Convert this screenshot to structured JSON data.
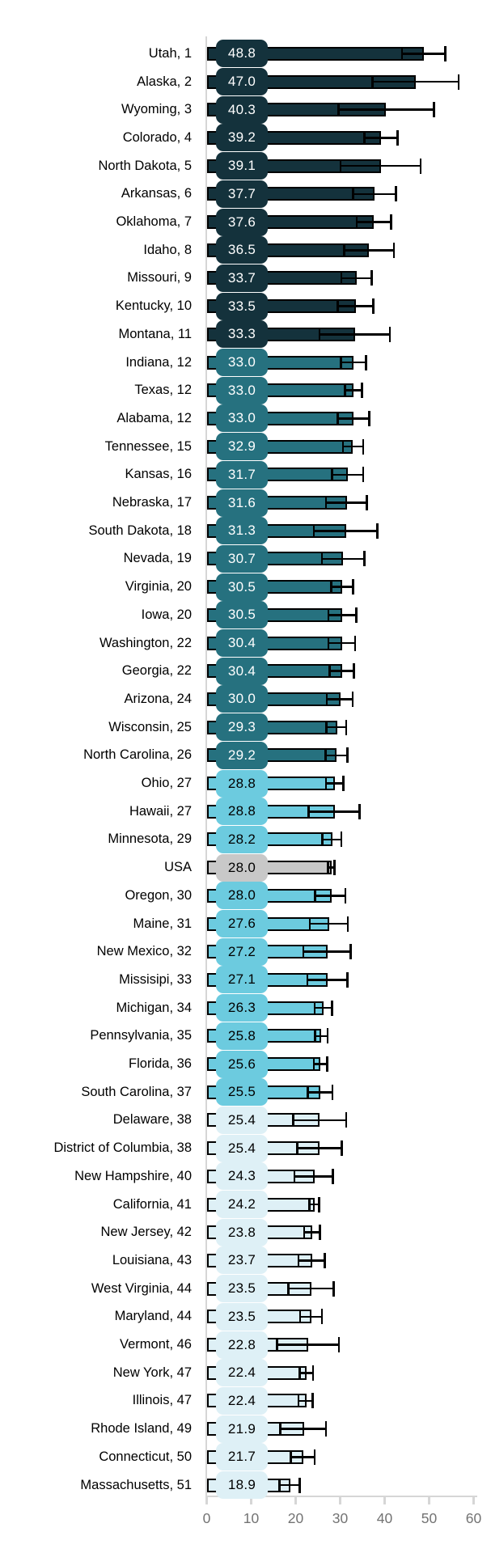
{
  "chart_data": {
    "type": "bar",
    "orientation": "horizontal",
    "title": "",
    "xlabel": "",
    "ylabel": "",
    "grid": false,
    "legend_position": "none",
    "value_axis": {
      "min": 0,
      "max": 60,
      "ticks": [
        "0",
        "10",
        "20",
        "30",
        "40",
        "50",
        "60"
      ]
    },
    "error_bars": true,
    "rows": [
      {
        "label": "Utah, 1",
        "value": 48.8,
        "display": "48.8",
        "ci": [
          43.9,
          53.6
        ],
        "tier": "q1"
      },
      {
        "label": "Alaska, 2",
        "value": 47.0,
        "display": "47.0",
        "ci": [
          37.3,
          56.6
        ],
        "tier": "q1"
      },
      {
        "label": "Wyoming, 3",
        "value": 40.3,
        "display": "40.3",
        "ci": [
          29.6,
          51.1
        ],
        "tier": "q1"
      },
      {
        "label": "Colorado, 4",
        "value": 39.2,
        "display": "39.2",
        "ci": [
          35.5,
          42.9
        ],
        "tier": "q1"
      },
      {
        "label": "North Dakota, 5",
        "value": 39.1,
        "display": "39.1",
        "ci": [
          30.1,
          48.1
        ],
        "tier": "q1"
      },
      {
        "label": "Arkansas, 6",
        "value": 37.7,
        "display": "37.7",
        "ci": [
          32.9,
          42.5
        ],
        "tier": "q1"
      },
      {
        "label": "Oklahoma, 7",
        "value": 37.6,
        "display": "37.6",
        "ci": [
          33.7,
          41.5
        ],
        "tier": "q1"
      },
      {
        "label": "Idaho, 8",
        "value": 36.5,
        "display": "36.5",
        "ci": [
          30.9,
          42.1
        ],
        "tier": "q1"
      },
      {
        "label": "Missouri, 9",
        "value": 33.7,
        "display": "33.7",
        "ci": [
          30.3,
          37.1
        ],
        "tier": "q1"
      },
      {
        "label": "Kentucky, 10",
        "value": 33.5,
        "display": "33.5",
        "ci": [
          29.5,
          37.5
        ],
        "tier": "q1"
      },
      {
        "label": "Montana, 11",
        "value": 33.3,
        "display": "33.3",
        "ci": [
          25.4,
          41.2
        ],
        "tier": "q1"
      },
      {
        "label": "Indiana, 12",
        "value": 33.0,
        "display": "33.0",
        "ci": [
          30.2,
          35.8
        ],
        "tier": "q2"
      },
      {
        "label": "Texas, 12",
        "value": 33.0,
        "display": "33.0",
        "ci": [
          31.1,
          34.9
        ],
        "tier": "q2"
      },
      {
        "label": "Alabama, 12",
        "value": 33.0,
        "display": "33.0",
        "ci": [
          29.5,
          36.5
        ],
        "tier": "q2"
      },
      {
        "label": "Tennessee, 15",
        "value": 32.9,
        "display": "32.9",
        "ci": [
          30.6,
          35.2
        ],
        "tier": "q2"
      },
      {
        "label": "Kansas, 16",
        "value": 31.7,
        "display": "31.7",
        "ci": [
          28.2,
          35.2
        ],
        "tier": "q2"
      },
      {
        "label": "Nebraska, 17",
        "value": 31.6,
        "display": "31.6",
        "ci": [
          26.8,
          36.0
        ],
        "tier": "q2"
      },
      {
        "label": "South Dakota, 18",
        "value": 31.3,
        "display": "31.3",
        "ci": [
          24.1,
          38.4
        ],
        "tier": "q2"
      },
      {
        "label": "Nevada, 19",
        "value": 30.7,
        "display": "30.7",
        "ci": [
          25.9,
          35.5
        ],
        "tier": "q2"
      },
      {
        "label": "Virginia, 20",
        "value": 30.5,
        "display": "30.5",
        "ci": [
          28.0,
          32.9
        ],
        "tier": "q2"
      },
      {
        "label": "Iowa, 20",
        "value": 30.5,
        "display": "30.5",
        "ci": [
          27.4,
          33.6
        ],
        "tier": "q2"
      },
      {
        "label": "Washington, 22",
        "value": 30.4,
        "display": "30.4",
        "ci": [
          27.4,
          33.4
        ],
        "tier": "q2"
      },
      {
        "label": "Georgia, 22",
        "value": 30.4,
        "display": "30.4",
        "ci": [
          27.6,
          33.1
        ],
        "tier": "q2"
      },
      {
        "label": "Arizona, 24",
        "value": 30.0,
        "display": "30.0",
        "ci": [
          27.0,
          32.8
        ],
        "tier": "q2"
      },
      {
        "label": "Wisconsin, 25",
        "value": 29.3,
        "display": "29.3",
        "ci": [
          26.9,
          31.4
        ],
        "tier": "q2"
      },
      {
        "label": "North Carolina, 26",
        "value": 29.2,
        "display": "29.2",
        "ci": [
          26.7,
          31.6
        ],
        "tier": "q2"
      },
      {
        "label": "Ohio, 27",
        "value": 28.8,
        "display": "28.8",
        "ci": [
          26.8,
          30.7
        ],
        "tier": "q3"
      },
      {
        "label": "Hawaii, 27",
        "value": 28.8,
        "display": "28.8",
        "ci": [
          22.9,
          34.4
        ],
        "tier": "q3"
      },
      {
        "label": "Minnesota, 29",
        "value": 28.2,
        "display": "28.2",
        "ci": [
          26.0,
          30.3
        ],
        "tier": "q3"
      },
      {
        "label": "USA",
        "value": 28.0,
        "display": "28.0",
        "ci": [
          27.3,
          28.7
        ],
        "tier": "usa"
      },
      {
        "label": "Oregon, 30",
        "value": 28.0,
        "display": "28.0",
        "ci": [
          24.4,
          31.2
        ],
        "tier": "q3"
      },
      {
        "label": "Maine, 31",
        "value": 27.6,
        "display": "27.6",
        "ci": [
          23.2,
          31.7
        ],
        "tier": "q3"
      },
      {
        "label": "New Mexico, 32",
        "value": 27.2,
        "display": "27.2",
        "ci": [
          21.7,
          32.4
        ],
        "tier": "q3"
      },
      {
        "label": "Missisipi, 33",
        "value": 27.1,
        "display": "27.1",
        "ci": [
          22.6,
          31.6
        ],
        "tier": "q3"
      },
      {
        "label": "Michigan, 34",
        "value": 26.3,
        "display": "26.3",
        "ci": [
          24.3,
          28.2
        ],
        "tier": "q3"
      },
      {
        "label": "Pennsylvania, 35",
        "value": 25.8,
        "display": "25.8",
        "ci": [
          24.4,
          27.2
        ],
        "tier": "q3"
      },
      {
        "label": "Florida, 36",
        "value": 25.6,
        "display": "25.6",
        "ci": [
          24.1,
          27.1
        ],
        "tier": "q3"
      },
      {
        "label": "South Carolina, 37",
        "value": 25.5,
        "display": "25.5",
        "ci": [
          22.7,
          28.3
        ],
        "tier": "q3"
      },
      {
        "label": "Delaware, 38",
        "value": 25.4,
        "display": "25.4",
        "ci": [
          19.5,
          31.4
        ],
        "tier": "q4"
      },
      {
        "label": "District of Columbia, 38",
        "value": 25.4,
        "display": "25.4",
        "ci": [
          20.4,
          30.4
        ],
        "tier": "q4"
      },
      {
        "label": "New Hampshire, 40",
        "value": 24.3,
        "display": "24.3",
        "ci": [
          19.7,
          28.4
        ],
        "tier": "q4"
      },
      {
        "label": "California, 41",
        "value": 24.2,
        "display": "24.2",
        "ci": [
          23.1,
          25.3
        ],
        "tier": "q4"
      },
      {
        "label": "New Jersey, 42",
        "value": 23.8,
        "display": "23.8",
        "ci": [
          21.9,
          25.5
        ],
        "tier": "q4"
      },
      {
        "label": "Louisiana, 43",
        "value": 23.7,
        "display": "23.7",
        "ci": [
          20.6,
          26.5
        ],
        "tier": "q4"
      },
      {
        "label": "West Virginia, 44",
        "value": 23.5,
        "display": "23.5",
        "ci": [
          18.4,
          28.5
        ],
        "tier": "q4"
      },
      {
        "label": "Maryland, 44",
        "value": 23.5,
        "display": "23.5",
        "ci": [
          21.0,
          25.9
        ],
        "tier": "q4"
      },
      {
        "label": "Vermont, 46",
        "value": 22.8,
        "display": "22.8",
        "ci": [
          15.8,
          29.7
        ],
        "tier": "q4"
      },
      {
        "label": "New York, 47",
        "value": 22.4,
        "display": "22.4",
        "ci": [
          20.9,
          23.9
        ],
        "tier": "q4"
      },
      {
        "label": "Illinois, 47",
        "value": 22.4,
        "display": "22.4",
        "ci": [
          20.6,
          23.8
        ],
        "tier": "q4"
      },
      {
        "label": "Rhode Island, 49",
        "value": 21.9,
        "display": "21.9",
        "ci": [
          16.5,
          26.8
        ],
        "tier": "q4"
      },
      {
        "label": "Connecticut, 50",
        "value": 21.7,
        "display": "21.7",
        "ci": [
          18.9,
          24.3
        ],
        "tier": "q4"
      },
      {
        "label": "Massachusetts, 51",
        "value": 18.9,
        "display": "18.9",
        "ci": [
          16.4,
          20.9
        ],
        "tier": "q4"
      }
    ]
  },
  "colors": {
    "q1": "#14323c",
    "q2": "#26717f",
    "q3": "#6ccbdf",
    "q4": "#def0f6",
    "usa": "#c8c8c8",
    "error": "#000000",
    "axis_line": "#d6d6d6",
    "tick_label": "#737373",
    "label_text": "#000000",
    "badge_text_on_dark": "#ffffff",
    "badge_text_on_light": "#000000",
    "background": "#ffffff"
  }
}
